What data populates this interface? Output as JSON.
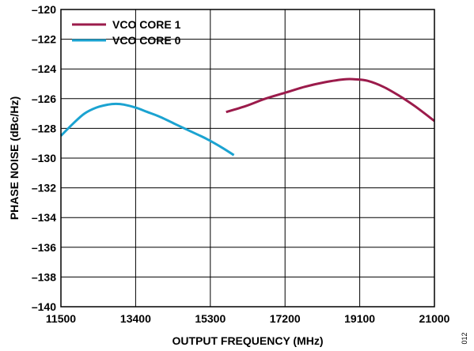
{
  "chart_data": {
    "type": "line",
    "xlabel": "OUTPUT FREQUENCY (MHz)",
    "ylabel": "PHASE NOISE (dBc/Hz)",
    "xlim": [
      11500,
      21000
    ],
    "ylim": [
      -140,
      -120
    ],
    "xticks": [
      11500,
      13400,
      15300,
      17200,
      19100,
      21000
    ],
    "xtick_labels": [
      "11500",
      "13400",
      "15300",
      "17200",
      "19100",
      "21000"
    ],
    "yticks": [
      -120,
      -122,
      -124,
      -126,
      -128,
      -130,
      -132,
      -134,
      -136,
      -138,
      -140
    ],
    "ytick_labels": [
      "–120",
      "–122",
      "–124",
      "–126",
      "–128",
      "–130",
      "–132",
      "–134",
      "–136",
      "–138",
      "–140"
    ],
    "grid": true,
    "legend_position": "top-left",
    "figure_id": "012",
    "series": [
      {
        "name": "VCO CORE 1",
        "color": "#9b1b4b",
        "x": [
          15700,
          16200,
          16700,
          17200,
          17700,
          18200,
          18700,
          19000,
          19300,
          19700,
          20100,
          20500,
          21000
        ],
        "y": [
          -126.9,
          -126.5,
          -126.0,
          -125.6,
          -125.2,
          -124.9,
          -124.7,
          -124.7,
          -124.8,
          -125.2,
          -125.8,
          -126.5,
          -127.5
        ]
      },
      {
        "name": "VCO CORE 0",
        "color": "#1ba3d1",
        "x": [
          11500,
          11800,
          12100,
          12400,
          12700,
          12900,
          13100,
          13400,
          13700,
          14000,
          14400,
          14800,
          15200,
          15600,
          15900
        ],
        "y": [
          -128.5,
          -127.7,
          -127.0,
          -126.6,
          -126.4,
          -126.35,
          -126.4,
          -126.6,
          -126.9,
          -127.2,
          -127.7,
          -128.2,
          -128.7,
          -129.3,
          -129.8
        ]
      }
    ]
  }
}
